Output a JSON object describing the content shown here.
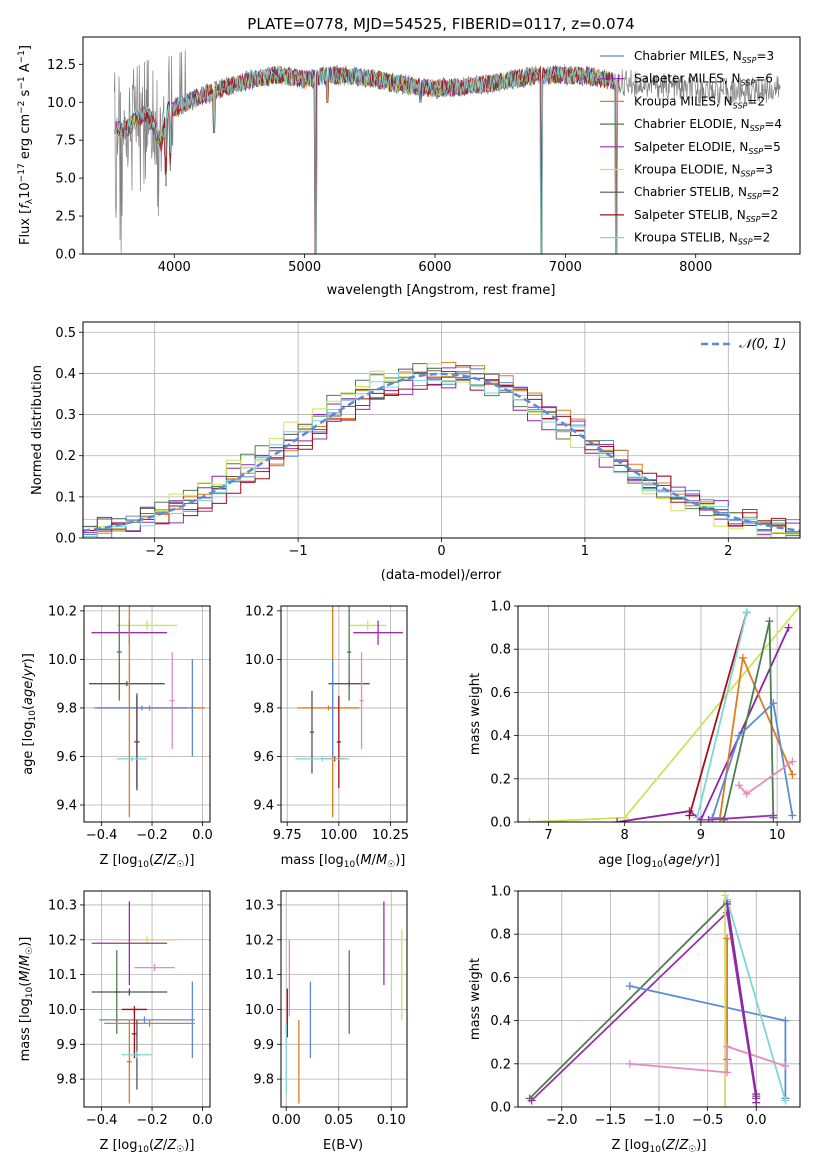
{
  "colors": {
    "Chabrier MILES": "#5b8bd6",
    "Salpeter MILES": "#8e24aa",
    "Kroupa MILES": "#e07b1e",
    "Chabrier ELODIE": "#4e7d4e",
    "Salpeter ELODIE": "#9b2fae",
    "Kroupa ELODIE": "#cbe55a",
    "Chabrier STELIB": "#555555",
    "Salpeter STELIB": "#a50f15",
    "Kroupa STELIB": "#7fd6d6",
    "pink": "#e58bbf",
    "data": "#808080",
    "gaussian": "#5b8bd6"
  },
  "chart_data": [
    {
      "type": "line",
      "id": "spectrum",
      "title": "PLATE=0778, MJD=54525, FIBERID=0117, z=0.074",
      "xlabel": "wavelength [Angstrom, rest frame]",
      "ylabel": "Flux [f_λ 10^-17 erg cm^-2 s^-1 A^-1]",
      "xlim": [
        3300,
        8800
      ],
      "ylim": [
        0,
        14.3
      ],
      "xticks": [
        4000,
        5000,
        6000,
        7000,
        8000
      ],
      "yticks": [
        0.0,
        2.5,
        5.0,
        7.5,
        10.0,
        12.5
      ],
      "grid": false,
      "legend_position": "right",
      "legend": [
        {
          "label": "Chabrier MILES, N_SSP=3",
          "series": "Chabrier MILES",
          "text": "Chabrier MILES, N",
          "sub": "SSP",
          "tail": "=3"
        },
        {
          "label": "Salpeter MILES, N_SSP=6",
          "series": "Salpeter MILES",
          "text": "Salpeter MILES, N",
          "sub": "SSP",
          "tail": "=6"
        },
        {
          "label": "Kroupa MILES, N_SSP=2",
          "series": "Kroupa MILES",
          "text": "Kroupa MILES, N",
          "sub": "SSP",
          "tail": "=2"
        },
        {
          "label": "Chabrier ELODIE, N_SSP=4",
          "series": "Chabrier ELODIE",
          "text": "Chabrier ELODIE, N",
          "sub": "SSP",
          "tail": "=4"
        },
        {
          "label": "Salpeter ELODIE, N_SSP=5",
          "series": "Salpeter ELODIE",
          "text": "Salpeter ELODIE, N",
          "sub": "SSP",
          "tail": "=5"
        },
        {
          "label": "Kroupa ELODIE, N_SSP=3",
          "series": "Kroupa ELODIE",
          "text": "Kroupa ELODIE, N",
          "sub": "SSP",
          "tail": "=3"
        },
        {
          "label": "Chabrier STELIB, N_SSP=2",
          "series": "Chabrier STELIB",
          "text": "Chabrier STELIB, N",
          "sub": "SSP",
          "tail": "=2"
        },
        {
          "label": "Salpeter STELIB, N_SSP=2",
          "series": "Salpeter STELIB",
          "text": "Salpeter STELIB, N",
          "sub": "SSP",
          "tail": "=2"
        },
        {
          "label": "Kroupa STELIB, N_SSP=2",
          "series": "Kroupa STELIB",
          "text": "Kroupa STELIB, N",
          "sub": "SSP",
          "tail": "=2"
        }
      ],
      "continuum": [
        [
          3540,
          8.5
        ],
        [
          3600,
          8.0
        ],
        [
          3700,
          8.8
        ],
        [
          3800,
          9.3
        ],
        [
          3900,
          7.3
        ],
        [
          3950,
          9.5
        ],
        [
          4000,
          9.6
        ],
        [
          4200,
          10.4
        ],
        [
          4400,
          11.0
        ],
        [
          4600,
          11.5
        ],
        [
          4800,
          11.8
        ],
        [
          5000,
          11.5
        ],
        [
          5200,
          11.8
        ],
        [
          5400,
          11.7
        ],
        [
          5600,
          11.4
        ],
        [
          5800,
          11.1
        ],
        [
          6000,
          10.9
        ],
        [
          6200,
          11.0
        ],
        [
          6400,
          11.2
        ],
        [
          6600,
          11.5
        ],
        [
          6800,
          11.8
        ],
        [
          7000,
          11.8
        ],
        [
          7200,
          11.7
        ],
        [
          7400,
          11.3
        ],
        [
          7600,
          11.2
        ],
        [
          7800,
          11.0
        ],
        [
          8000,
          10.8
        ],
        [
          8300,
          10.7
        ],
        [
          8650,
          10.9
        ]
      ],
      "model_end": 7420,
      "absorption_lines": [
        [
          5085,
          0.0
        ],
        [
          6815,
          0.0
        ],
        [
          7390,
          0.0
        ],
        [
          3935,
          4.5
        ],
        [
          3970,
          5.5
        ],
        [
          4305,
          8.0
        ],
        [
          5175,
          10.0
        ],
        [
          5890,
          10.0
        ]
      ]
    },
    {
      "type": "line",
      "id": "residuals",
      "xlabel": "(data-model)/error",
      "ylabel": "Normed distribution",
      "xlim": [
        -2.5,
        2.5
      ],
      "ylim": [
        0,
        0.525
      ],
      "xticks": [
        -2,
        -1,
        0,
        1,
        2
      ],
      "yticks": [
        0.0,
        0.1,
        0.2,
        0.3,
        0.4,
        0.5
      ],
      "grid": true,
      "legend": [
        {
          "label": "N(0,1)",
          "text": "𝒩(0, 1)"
        }
      ],
      "legend_position": "top-right",
      "gaussian": {
        "mean": 0,
        "sigma": 1,
        "style": "dashed"
      },
      "histograms": [
        {
          "series": "Chabrier MILES",
          "bin_width": 0.1,
          "shift": 0.03,
          "amp": 1.0
        },
        {
          "series": "Salpeter MILES",
          "bin_width": 0.1,
          "shift": -0.04,
          "amp": 0.98
        },
        {
          "series": "Kroupa MILES",
          "bin_width": 0.1,
          "shift": 0.06,
          "amp": 1.01
        },
        {
          "series": "Chabrier ELODIE",
          "bin_width": 0.1,
          "shift": -0.08,
          "amp": 1.02
        },
        {
          "series": "Salpeter ELODIE",
          "bin_width": 0.1,
          "shift": 0.09,
          "amp": 0.99
        },
        {
          "series": "Kroupa ELODIE",
          "bin_width": 0.1,
          "shift": -0.1,
          "amp": 1.03
        },
        {
          "series": "Chabrier STELIB",
          "bin_width": 0.1,
          "shift": 0.0,
          "amp": 1.0
        },
        {
          "series": "Salpeter STELIB",
          "bin_width": 0.1,
          "shift": 0.05,
          "amp": 0.97
        },
        {
          "series": "Kroupa STELIB",
          "bin_width": 0.1,
          "shift": -0.02,
          "amp": 1.0
        }
      ]
    },
    {
      "type": "scatter",
      "id": "age_vs_Z",
      "xlabel": "Z [log10(Z/Z☉)]",
      "ylabel": "age [log10(age/yr)]",
      "xlim": [
        -0.47,
        0.03
      ],
      "ylim": [
        9.33,
        10.22
      ],
      "xticks": [
        -0.4,
        -0.2,
        0.0
      ],
      "yticks": [
        9.4,
        9.6,
        9.8,
        10.0,
        10.2
      ],
      "grid": true,
      "errorbars": [
        {
          "series": "Kroupa ELODIE",
          "x": -0.22,
          "xerr": 0.12,
          "y": 10.14,
          "yerr": 0.02
        },
        {
          "series": "Salpeter ELODIE",
          "x": -0.29,
          "xerr": 0.15,
          "y": 10.11,
          "yerr": 0.05
        },
        {
          "series": "Chabrier ELODIE",
          "x": -0.33,
          "xerr": 0.01,
          "y": 10.03,
          "yerr": 0.2
        },
        {
          "series": "Chabrier STELIB",
          "x": -0.3,
          "xerr": 0.15,
          "y": 9.9,
          "yerr": 0.01
        },
        {
          "series": "pink",
          "x": -0.12,
          "xerr": 0.01,
          "y": 9.83,
          "yerr": 0.2
        },
        {
          "series": "Kroupa MILES",
          "x": -0.29,
          "xerr": 0.01,
          "y": 9.8,
          "yerr": 0.45
        },
        {
          "series": "Kroupa MILES",
          "x": -0.21,
          "xerr": 0.22,
          "y": 9.8,
          "yerr": 0.01
        },
        {
          "series": "Chabrier MILES",
          "x": -0.04,
          "xerr": 0.01,
          "y": 9.8,
          "yerr": 0.2
        },
        {
          "series": "Chabrier MILES",
          "x": -0.24,
          "xerr": 0.18,
          "y": 9.8,
          "yerr": 0.01
        },
        {
          "series": "Salpeter STELIB",
          "x": -0.26,
          "xerr": 0.01,
          "y": 9.66,
          "yerr": 0.19
        },
        {
          "series": "Chabrier STELIB",
          "x": -0.26,
          "xerr": 0.01,
          "y": 9.66,
          "yerr": 0.2
        },
        {
          "series": "Kroupa STELIB",
          "x": -0.28,
          "xerr": 0.06,
          "y": 9.59,
          "yerr": 0.01
        }
      ]
    },
    {
      "type": "scatter",
      "id": "age_vs_mass",
      "xlabel": "mass [log10(M/M☉)]",
      "ylabel": "",
      "xlim": [
        9.72,
        10.33
      ],
      "ylim": [
        9.33,
        10.22
      ],
      "xticks": [
        9.75,
        10.0,
        10.25
      ],
      "yticks": [
        9.4,
        9.6,
        9.8,
        10.0,
        10.2
      ],
      "grid": true,
      "errorbars": [
        {
          "series": "Kroupa ELODIE",
          "x": 10.14,
          "xerr": 0.09,
          "y": 10.14,
          "yerr": 0.02
        },
        {
          "series": "Salpeter ELODIE",
          "x": 10.19,
          "xerr": 0.12,
          "y": 10.11,
          "yerr": 0.05
        },
        {
          "series": "Chabrier ELODIE",
          "x": 10.05,
          "xerr": 0.01,
          "y": 10.03,
          "yerr": 0.2
        },
        {
          "series": "Chabrier STELIB",
          "x": 10.05,
          "xerr": 0.1,
          "y": 9.9,
          "yerr": 0.01
        },
        {
          "series": "pink",
          "x": 10.11,
          "xerr": 0.01,
          "y": 9.83,
          "yerr": 0.2
        },
        {
          "series": "Kroupa MILES",
          "x": 9.97,
          "xerr": 0.02,
          "y": 9.8,
          "yerr": 0.45
        },
        {
          "series": "Kroupa MILES",
          "x": 9.95,
          "xerr": 0.15,
          "y": 9.8,
          "yerr": 0.01
        },
        {
          "series": "Chabrier MILES",
          "x": 9.97,
          "xerr": 0.01,
          "y": 9.8,
          "yerr": 0.2
        },
        {
          "series": "Chabrier STELIB",
          "x": 9.87,
          "xerr": 0.01,
          "y": 9.7,
          "yerr": 0.17
        },
        {
          "series": "Salpeter STELIB",
          "x": 10.0,
          "xerr": 0.01,
          "y": 9.66,
          "yerr": 0.19
        },
        {
          "series": "Salpeter STELIB",
          "x": 9.98,
          "xerr": 0.05,
          "y": 9.59,
          "yerr": 0.01
        },
        {
          "series": "Kroupa STELIB",
          "x": 9.92,
          "xerr": 0.13,
          "y": 9.59,
          "yerr": 0.01
        }
      ]
    },
    {
      "type": "line",
      "id": "mass_weight_vs_age",
      "xlabel": "age [log10(age/yr)]",
      "ylabel": "mass weight",
      "xlim": [
        6.6,
        10.3
      ],
      "ylim": [
        0,
        1.0
      ],
      "xticks": [
        7,
        8,
        9,
        10
      ],
      "yticks": [
        0.0,
        0.2,
        0.4,
        0.6,
        0.8,
        1.0
      ],
      "grid": true,
      "series": [
        {
          "name": "Kroupa ELODIE",
          "x": [
            6.75,
            8.0,
            10.3
          ],
          "y": [
            0.0,
            0.02,
            1.0
          ]
        },
        {
          "name": "Salpeter MILES",
          "x": [
            7.9,
            8.85,
            9.0,
            10.15
          ],
          "y": [
            0.0,
            0.05,
            0.01,
            0.9
          ]
        },
        {
          "name": "Kroupa MILES",
          "x": [
            9.25,
            9.55,
            10.2
          ],
          "y": [
            0.02,
            0.76,
            0.22
          ]
        },
        {
          "name": "Chabrier ELODIE",
          "x": [
            9.3,
            9.9,
            9.95
          ],
          "y": [
            0.01,
            0.93,
            0.02
          ]
        },
        {
          "name": "Salpeter STELIB",
          "x": [
            8.85,
            9.6
          ],
          "y": [
            0.03,
            0.97
          ]
        },
        {
          "name": "Kroupa STELIB",
          "x": [
            8.95,
            9.6
          ],
          "y": [
            0.02,
            0.97
          ]
        },
        {
          "name": "Chabrier MILES",
          "x": [
            9.15,
            9.5,
            9.95,
            10.2
          ],
          "y": [
            0.02,
            0.4,
            0.55,
            0.03
          ]
        },
        {
          "name": "pink",
          "x": [
            9.5,
            9.6,
            10.2
          ],
          "y": [
            0.17,
            0.13,
            0.28
          ]
        },
        {
          "name": "Salpeter ELODIE",
          "x": [
            9.1,
            9.95
          ],
          "y": [
            0.01,
            0.03
          ]
        }
      ]
    },
    {
      "type": "scatter",
      "id": "mass_vs_Z",
      "xlabel": "Z [log10(Z/Z☉)]",
      "ylabel": "mass [log10(M/M☉)]",
      "xlim": [
        -0.47,
        0.03
      ],
      "ylim": [
        9.72,
        10.34
      ],
      "xticks": [
        -0.4,
        -0.2,
        0.0
      ],
      "yticks": [
        9.8,
        9.9,
        10.0,
        10.1,
        10.2,
        10.3
      ],
      "grid": true,
      "errorbars": [
        {
          "series": "Kroupa ELODIE",
          "x": -0.22,
          "xerr": 0.12,
          "y": 10.2,
          "yerr": 0.01
        },
        {
          "series": "Salpeter ELODIE",
          "x": -0.29,
          "xerr": 0.15,
          "y": 10.19,
          "yerr": 0.12
        },
        {
          "series": "pink",
          "x": -0.19,
          "xerr": 0.08,
          "y": 10.12,
          "yerr": 0.01
        },
        {
          "series": "Chabrier ELODIE",
          "x": -0.34,
          "xerr": 0.01,
          "y": 10.05,
          "yerr": 0.12
        },
        {
          "series": "Chabrier STELIB",
          "x": -0.29,
          "xerr": 0.15,
          "y": 10.05,
          "yerr": 0.01
        },
        {
          "series": "Chabrier MILES",
          "x": -0.04,
          "xerr": 0.01,
          "y": 9.97,
          "yerr": 0.11
        },
        {
          "series": "Chabrier MILES",
          "x": -0.23,
          "xerr": 0.18,
          "y": 9.97,
          "yerr": 0.01
        },
        {
          "series": "Kroupa MILES",
          "x": -0.29,
          "xerr": 0.01,
          "y": 9.85,
          "yerr": 0.12
        },
        {
          "series": "Kroupa MILES",
          "x": -0.21,
          "xerr": 0.18,
          "y": 9.96,
          "yerr": 0.01
        },
        {
          "series": "Salpeter STELIB",
          "x": -0.27,
          "xerr": 0.05,
          "y": 10.0,
          "yerr": 0.01
        },
        {
          "series": "Salpeter STELIB",
          "x": -0.27,
          "xerr": 0.01,
          "y": 9.93,
          "yerr": 0.07
        },
        {
          "series": "Chabrier STELIB",
          "x": -0.26,
          "xerr": 0.01,
          "y": 9.87,
          "yerr": 0.1
        },
        {
          "series": "Kroupa STELIB",
          "x": -0.26,
          "xerr": 0.06,
          "y": 9.87,
          "yerr": 0.01
        }
      ]
    },
    {
      "type": "scatter",
      "id": "mass_vs_EBV",
      "xlabel": "E(B-V)",
      "ylabel": "",
      "xlim": [
        -0.005,
        0.115
      ],
      "ylim": [
        9.72,
        10.34
      ],
      "xticks": [
        0.0,
        0.05,
        0.1
      ],
      "yticks": [
        9.8,
        9.9,
        10.0,
        10.1,
        10.2,
        10.3
      ],
      "grid": true,
      "errorbars": [
        {
          "series": "Kroupa ELODIE",
          "x": 0.11,
          "xerr": 0.0,
          "y": 10.1,
          "yerr": 0.13
        },
        {
          "series": "Salpeter ELODIE",
          "x": 0.093,
          "xerr": 0.0,
          "y": 10.19,
          "yerr": 0.12
        },
        {
          "series": "Chabrier ELODIE",
          "x": 0.06,
          "xerr": 0.0,
          "y": 10.05,
          "yerr": 0.12
        },
        {
          "series": "Chabrier MILES",
          "x": 0.023,
          "xerr": 0.0,
          "y": 9.97,
          "yerr": 0.11
        },
        {
          "series": "pink",
          "x": 0.003,
          "xerr": 0.0,
          "y": 10.09,
          "yerr": 0.11
        },
        {
          "series": "Kroupa MILES",
          "x": 0.012,
          "xerr": 0.0,
          "y": 9.85,
          "yerr": 0.12
        },
        {
          "series": "Salpeter STELIB",
          "x": 0.001,
          "xerr": 0.0,
          "y": 9.99,
          "yerr": 0.07
        },
        {
          "series": "Kroupa STELIB",
          "x": 0.0,
          "xerr": 0.0,
          "y": 9.86,
          "yerr": 0.1
        }
      ]
    },
    {
      "type": "line",
      "id": "mass_weight_vs_Z",
      "xlabel": "Z [log10(Z/Z☉)]",
      "ylabel": "mass weight",
      "xlim": [
        -2.45,
        0.45
      ],
      "ylim": [
        0,
        1.0
      ],
      "xticks": [
        -2.0,
        -1.5,
        -1.0,
        -0.5,
        0.0
      ],
      "yticks": [
        0.0,
        0.2,
        0.4,
        0.6,
        0.8,
        1.0
      ],
      "grid": true,
      "series": [
        {
          "name": "Chabrier ELODIE",
          "x": [
            -2.33,
            -0.3,
            0.0
          ],
          "y": [
            0.04,
            0.95,
            0.05
          ]
        },
        {
          "name": "Salpeter ELODIE",
          "x": [
            -2.31,
            -0.3,
            0.0
          ],
          "y": [
            0.03,
            0.9,
            0.04
          ]
        },
        {
          "name": "Chabrier MILES",
          "x": [
            -1.3,
            0.3,
            0.3
          ],
          "y": [
            0.56,
            0.4,
            0.04
          ]
        },
        {
          "name": "Kroupa STELIB",
          "x": [
            -0.3,
            0.3
          ],
          "y": [
            0.96,
            0.03
          ]
        },
        {
          "name": "Kroupa ELODIE",
          "x": [
            -0.32,
            -0.32
          ],
          "y": [
            0.0,
            0.98
          ]
        },
        {
          "name": "Kroupa MILES",
          "x": [
            -0.3,
            -0.3
          ],
          "y": [
            0.22,
            0.78
          ]
        },
        {
          "name": "pink",
          "x": [
            -1.3,
            -0.3,
            -0.3,
            0.3
          ],
          "y": [
            0.2,
            0.16,
            0.28,
            0.19
          ]
        },
        {
          "name": "Salpeter MILES",
          "x": [
            -0.3,
            0.0,
            0.0
          ],
          "y": [
            0.94,
            0.06,
            0.02
          ]
        }
      ]
    }
  ]
}
